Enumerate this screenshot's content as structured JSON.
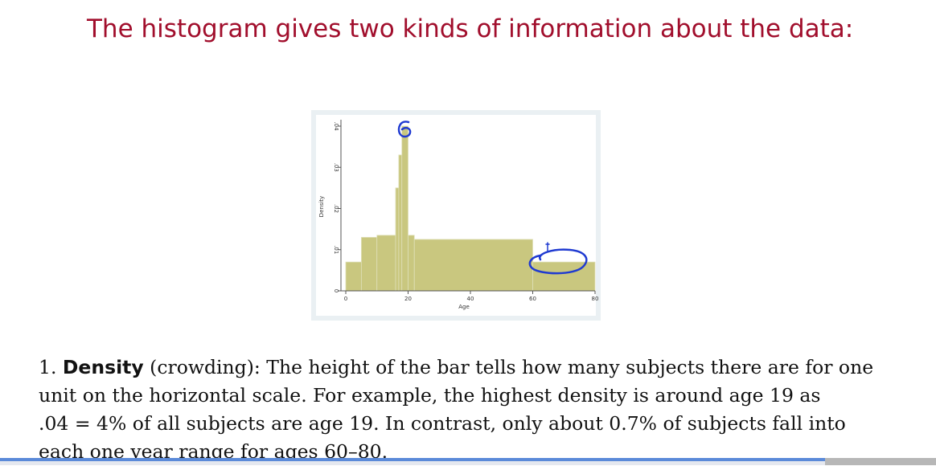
{
  "slide": {
    "title": "The histogram gives two kinds of information about the data:"
  },
  "chart_data": {
    "type": "bar",
    "title": "",
    "xlabel": "Age",
    "ylabel": "Density",
    "xlim": [
      0,
      80
    ],
    "ylim": [
      0,
      0.04
    ],
    "x_ticks": [
      0,
      20,
      40,
      60,
      80
    ],
    "x_tick_labels": [
      "0",
      "20",
      "40",
      "60",
      "80"
    ],
    "y_ticks": [
      0,
      0.01,
      0.02,
      0.03,
      0.04
    ],
    "y_tick_labels": [
      "0",
      ".01",
      ".02",
      ".03",
      ".04"
    ],
    "bars": [
      {
        "x0": 0,
        "x1": 5,
        "value": 0.007
      },
      {
        "x0": 5,
        "x1": 10,
        "value": 0.013
      },
      {
        "x0": 10,
        "x1": 16,
        "value": 0.0135
      },
      {
        "x0": 16,
        "x1": 17,
        "value": 0.025
      },
      {
        "x0": 17,
        "x1": 18,
        "value": 0.033
      },
      {
        "x0": 18,
        "x1": 20,
        "value": 0.04
      },
      {
        "x0": 20,
        "x1": 22,
        "value": 0.0135
      },
      {
        "x0": 22,
        "x1": 60,
        "value": 0.0125
      },
      {
        "x0": 60,
        "x1": 80,
        "value": 0.007
      }
    ],
    "grid": false,
    "colors": {
      "bar": "#c9c77f",
      "background": "#eaf0f3"
    }
  },
  "annotations": {
    "ink_color": "#1f3ad1"
  },
  "body": {
    "line1_num": "1.",
    "line1_bold": "Density",
    "line1_rest": " (crowding): The height of the bar tells how many subjects there are for one",
    "line2": "unit on the horizontal scale. For example, the highest density is around age 19 as",
    "line3": ".04 = 4% of all subjects are age 19. In contrast, only about 0.7% of subjects fall into",
    "line4": "each one year range for ages 60–80."
  }
}
